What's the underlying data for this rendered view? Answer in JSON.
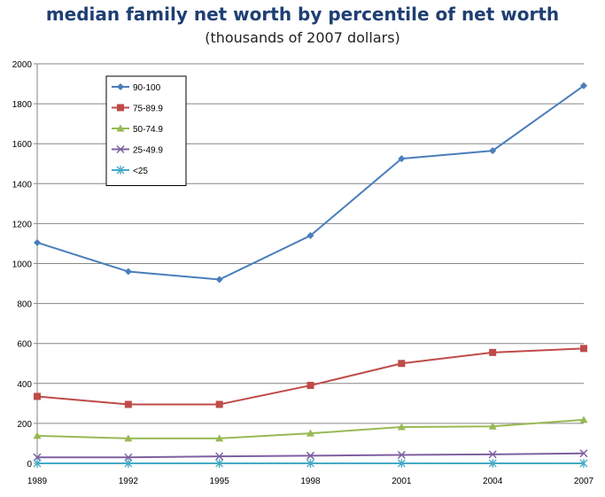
{
  "chart_data": {
    "type": "line",
    "title": "median family net worth by percentile of net worth",
    "subtitle": "(thousands of 2007 dollars)",
    "xlabel": "",
    "ylabel": "",
    "x": [
      "1989",
      "1992",
      "1995",
      "1998",
      "2001",
      "2004",
      "2007"
    ],
    "ylim": [
      0,
      2000
    ],
    "yticks": [
      "0",
      "200",
      "400",
      "600",
      "800",
      "1000",
      "1200",
      "1400",
      "1600",
      "1800",
      "2000"
    ],
    "grid": true,
    "legend_position": "top-left",
    "series": [
      {
        "name": "90-100",
        "color": "#4a7ebb",
        "marker": "diamond",
        "values": [
          1105,
          960,
          920,
          1140,
          1525,
          1565,
          1890
        ]
      },
      {
        "name": "75-89.9",
        "color": "#be4b48",
        "marker": "square",
        "values": [
          335,
          295,
          295,
          390,
          500,
          555,
          575
        ]
      },
      {
        "name": "50-74.9",
        "color": "#98b954",
        "marker": "triangle",
        "values": [
          138,
          125,
          125,
          150,
          182,
          185,
          218
        ]
      },
      {
        "name": "25-49.9",
        "color": "#7d60a0",
        "marker": "x",
        "values": [
          30,
          30,
          35,
          38,
          42,
          45,
          50
        ]
      },
      {
        "name": "<25",
        "color": "#46aac5",
        "marker": "star",
        "values": [
          0,
          0,
          0,
          0,
          0,
          0,
          0
        ]
      }
    ]
  }
}
